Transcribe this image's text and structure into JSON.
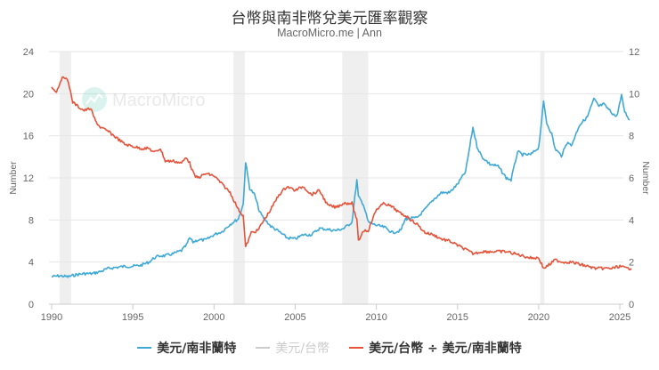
{
  "header": {
    "title": "台幣與南非幣兌美元匯率觀察",
    "subtitle": "MacroMicro.me | Ann"
  },
  "watermark": "MacroMicro",
  "colors": {
    "zar": "#3fa9d6",
    "twd": "#cccccc",
    "ratio": "#e5533a",
    "recession": "#efefef",
    "grid": "#e6e6e6"
  },
  "chart_data": {
    "type": "line",
    "title": "台幣與南非幣兌美元匯率觀察",
    "subtitle": "MacroMicro.me | Ann",
    "xlabel": "",
    "x_ticks": [
      "1990",
      "1995",
      "2000",
      "2005",
      "2010",
      "2015",
      "2020",
      "2025"
    ],
    "x_range": [
      1989.9,
      2026.0
    ],
    "y_left": {
      "label": "Number",
      "ticks": [
        "0",
        "4",
        "8",
        "12",
        "16",
        "20",
        "24"
      ],
      "range": [
        0,
        24
      ]
    },
    "y_right": {
      "label": "Number",
      "ticks": [
        "0",
        "2",
        "4",
        "6",
        "8",
        "10",
        "12"
      ],
      "range": [
        0,
        12
      ]
    },
    "grid": true,
    "legend_position": "bottom",
    "recession_bands": [
      [
        1990.5,
        1991.2
      ],
      [
        2001.2,
        2001.9
      ],
      [
        2007.9,
        2009.5
      ],
      [
        2020.1,
        2020.35
      ]
    ],
    "series": [
      {
        "name": "美元/南非蘭特",
        "axis": "left",
        "visible": true,
        "color": "#3fa9d6",
        "x": [
          1990.0,
          1990.5,
          1991.0,
          1991.5,
          1992.0,
          1992.5,
          1993.0,
          1993.5,
          1994.0,
          1994.5,
          1995.0,
          1995.5,
          1996.0,
          1996.3,
          1996.7,
          1997.0,
          1997.5,
          1998.0,
          1998.3,
          1998.5,
          1998.7,
          1999.0,
          1999.5,
          2000.0,
          2000.5,
          2001.0,
          2001.5,
          2001.8,
          2001.95,
          2002.2,
          2002.5,
          2002.8,
          2003.0,
          2003.5,
          2004.0,
          2004.5,
          2005.0,
          2005.5,
          2006.0,
          2006.5,
          2007.0,
          2007.5,
          2008.0,
          2008.5,
          2008.8,
          2008.9,
          2009.2,
          2009.5,
          2010.0,
          2010.5,
          2011.0,
          2011.5,
          2011.8,
          2012.5,
          2013.0,
          2013.5,
          2014.0,
          2014.5,
          2015.0,
          2015.5,
          2015.95,
          2016.2,
          2016.5,
          2017.0,
          2017.5,
          2018.0,
          2018.3,
          2018.7,
          2019.0,
          2019.5,
          2020.0,
          2020.3,
          2020.5,
          2020.8,
          2021.0,
          2021.4,
          2021.8,
          2022.0,
          2022.5,
          2023.0,
          2023.4,
          2023.7,
          2024.0,
          2024.5,
          2024.8,
          2025.1,
          2025.3,
          2025.6
        ],
        "values": [
          2.6,
          2.7,
          2.6,
          2.8,
          2.9,
          2.9,
          3.1,
          3.4,
          3.5,
          3.6,
          3.6,
          3.7,
          4.0,
          4.4,
          4.6,
          4.6,
          4.8,
          5.1,
          5.6,
          6.3,
          5.9,
          6.1,
          6.1,
          6.6,
          6.9,
          7.6,
          8.1,
          9.5,
          13.5,
          11.0,
          10.4,
          8.8,
          8.3,
          7.4,
          6.9,
          6.3,
          6.2,
          6.6,
          6.6,
          7.2,
          7.1,
          7.0,
          7.2,
          7.8,
          11.8,
          10.2,
          9.5,
          7.8,
          7.5,
          7.3,
          6.8,
          7.0,
          8.1,
          8.2,
          9.0,
          9.9,
          10.6,
          10.6,
          11.4,
          12.6,
          16.8,
          15.0,
          14.0,
          13.3,
          13.1,
          12.0,
          11.8,
          14.5,
          14.2,
          14.2,
          14.9,
          19.2,
          17.2,
          16.2,
          14.8,
          14.1,
          15.5,
          15.0,
          17.0,
          17.8,
          19.5,
          18.8,
          19.0,
          18.2,
          17.8,
          19.8,
          18.3,
          17.5
        ]
      },
      {
        "name": "美元/台幣",
        "axis": "right",
        "visible": false,
        "color": "#cccccc"
      },
      {
        "name": "美元/台幣 ÷ 美元/南非蘭特",
        "axis": "right",
        "visible": true,
        "color": "#e5533a",
        "x": [
          1990.0,
          1990.3,
          1990.6,
          1990.9,
          1991.1,
          1991.3,
          1991.6,
          1992.0,
          1992.4,
          1992.7,
          1993.0,
          1993.5,
          1994.0,
          1994.5,
          1995.0,
          1995.5,
          1996.0,
          1996.3,
          1996.7,
          1997.0,
          1997.5,
          1998.0,
          1998.3,
          1998.5,
          1998.8,
          1999.0,
          1999.5,
          2000.0,
          2000.5,
          2001.0,
          2001.5,
          2001.8,
          2001.95,
          2002.3,
          2002.7,
          2003.0,
          2003.5,
          2004.0,
          2004.5,
          2005.0,
          2005.5,
          2006.0,
          2006.5,
          2007.0,
          2007.5,
          2008.0,
          2008.5,
          2008.8,
          2008.9,
          2009.2,
          2009.5,
          2010.0,
          2010.5,
          2011.0,
          2011.5,
          2011.8,
          2012.5,
          2013.0,
          2013.5,
          2014.0,
          2014.5,
          2015.0,
          2015.5,
          2015.95,
          2016.5,
          2017.0,
          2017.5,
          2018.0,
          2018.5,
          2019.0,
          2019.5,
          2020.0,
          2020.3,
          2020.7,
          2021.0,
          2021.5,
          2022.0,
          2022.5,
          2023.0,
          2023.5,
          2024.0,
          2024.5,
          2025.0,
          2025.4,
          2025.7
        ],
        "values": [
          10.3,
          10.1,
          10.7,
          10.8,
          10.3,
          9.6,
          9.4,
          9.2,
          9.3,
          8.7,
          8.4,
          8.2,
          7.9,
          7.6,
          7.5,
          7.4,
          7.4,
          7.2,
          7.4,
          6.8,
          6.8,
          6.7,
          7.0,
          6.7,
          6.1,
          6.0,
          6.2,
          6.1,
          5.7,
          5.3,
          4.5,
          4.2,
          2.7,
          3.4,
          3.5,
          3.9,
          4.5,
          5.2,
          5.6,
          5.4,
          5.6,
          5.2,
          5.4,
          4.7,
          4.6,
          4.8,
          4.8,
          4.0,
          3.0,
          3.5,
          3.5,
          4.5,
          4.8,
          4.6,
          4.3,
          4.2,
          3.8,
          3.4,
          3.3,
          3.1,
          3.0,
          2.8,
          2.6,
          2.4,
          2.5,
          2.5,
          2.5,
          2.5,
          2.4,
          2.3,
          2.2,
          2.2,
          1.7,
          1.9,
          2.1,
          2.0,
          2.0,
          1.9,
          1.8,
          1.7,
          1.7,
          1.7,
          1.8,
          1.7,
          1.7
        ]
      }
    ]
  }
}
